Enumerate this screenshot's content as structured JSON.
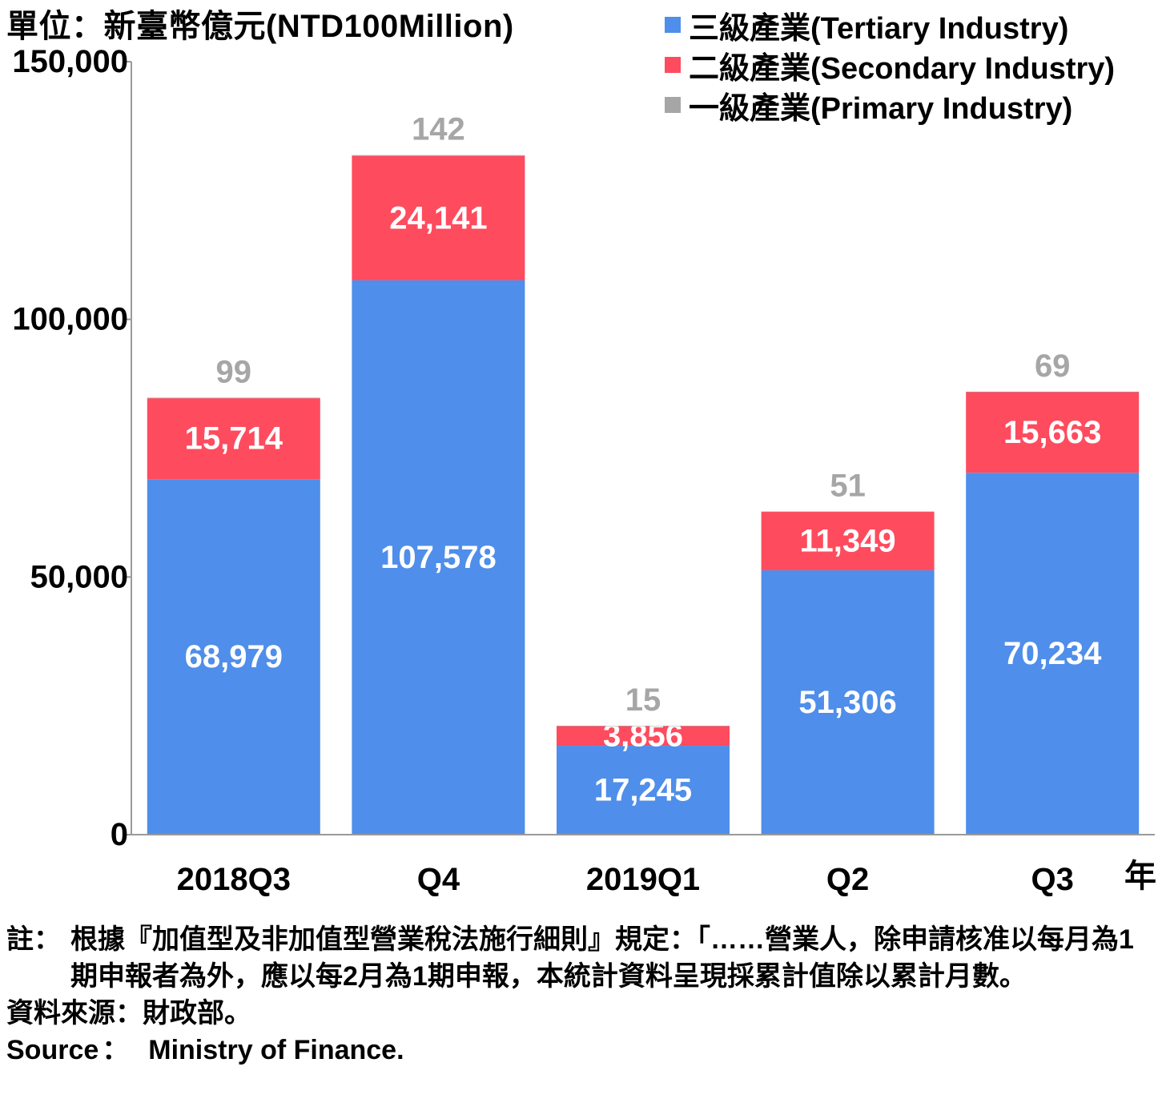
{
  "unit_label": "單位：新臺幣億元(NTD100Million)",
  "year_label": "年",
  "colors": {
    "tertiary": "#4f8eea",
    "secondary": "#ff4b5e",
    "primary": "#a6a6a6"
  },
  "legend": [
    {
      "label": "三級產業(Tertiary Industry)",
      "color": "#4f8eea"
    },
    {
      "label": "二級產業(Secondary Industry)",
      "color": "#ff4b5e"
    },
    {
      "label": "一級產業(Primary Industry)",
      "color": "#a6a6a6"
    }
  ],
  "chart_data": {
    "type": "bar",
    "stacked": true,
    "categories": [
      "2018Q3",
      "Q4",
      "2019Q1",
      "Q2",
      "Q3"
    ],
    "series": [
      {
        "name": "三級產業(Tertiary Industry)",
        "values": [
          68979,
          107578,
          17245,
          51306,
          70234
        ],
        "labels": [
          "68,979",
          "107,578",
          "17,245",
          "51,306",
          "70,234"
        ]
      },
      {
        "name": "二級產業(Secondary Industry)",
        "values": [
          15714,
          24141,
          3856,
          11349,
          15663
        ],
        "labels": [
          "15,714",
          "24,141",
          "3,856",
          "11,349",
          "15,663"
        ]
      },
      {
        "name": "一級產業(Primary Industry)",
        "values": [
          99,
          142,
          15,
          51,
          69
        ],
        "labels": [
          "99",
          "142",
          "15",
          "51",
          "69"
        ]
      }
    ],
    "yticks": [
      0,
      50000,
      100000,
      150000
    ],
    "ytick_labels": [
      "0",
      "50,000",
      "100,000",
      "150,000"
    ],
    "ylim": [
      0,
      150000
    ]
  },
  "notes": {
    "note_prefix": "註：",
    "note_text": "根據『加值型及非加值型營業稅法施行細則』規定：「……營業人，除申請核准以每月為1期申報者為外，應以每2月為1期申報，本統計資料呈現採累計值除以累計月數。",
    "source_zh": "資料來源：財政部。",
    "source_en_label": "Source",
    "source_en_sep": "：",
    "source_en_value": "Ministry of Finance."
  }
}
